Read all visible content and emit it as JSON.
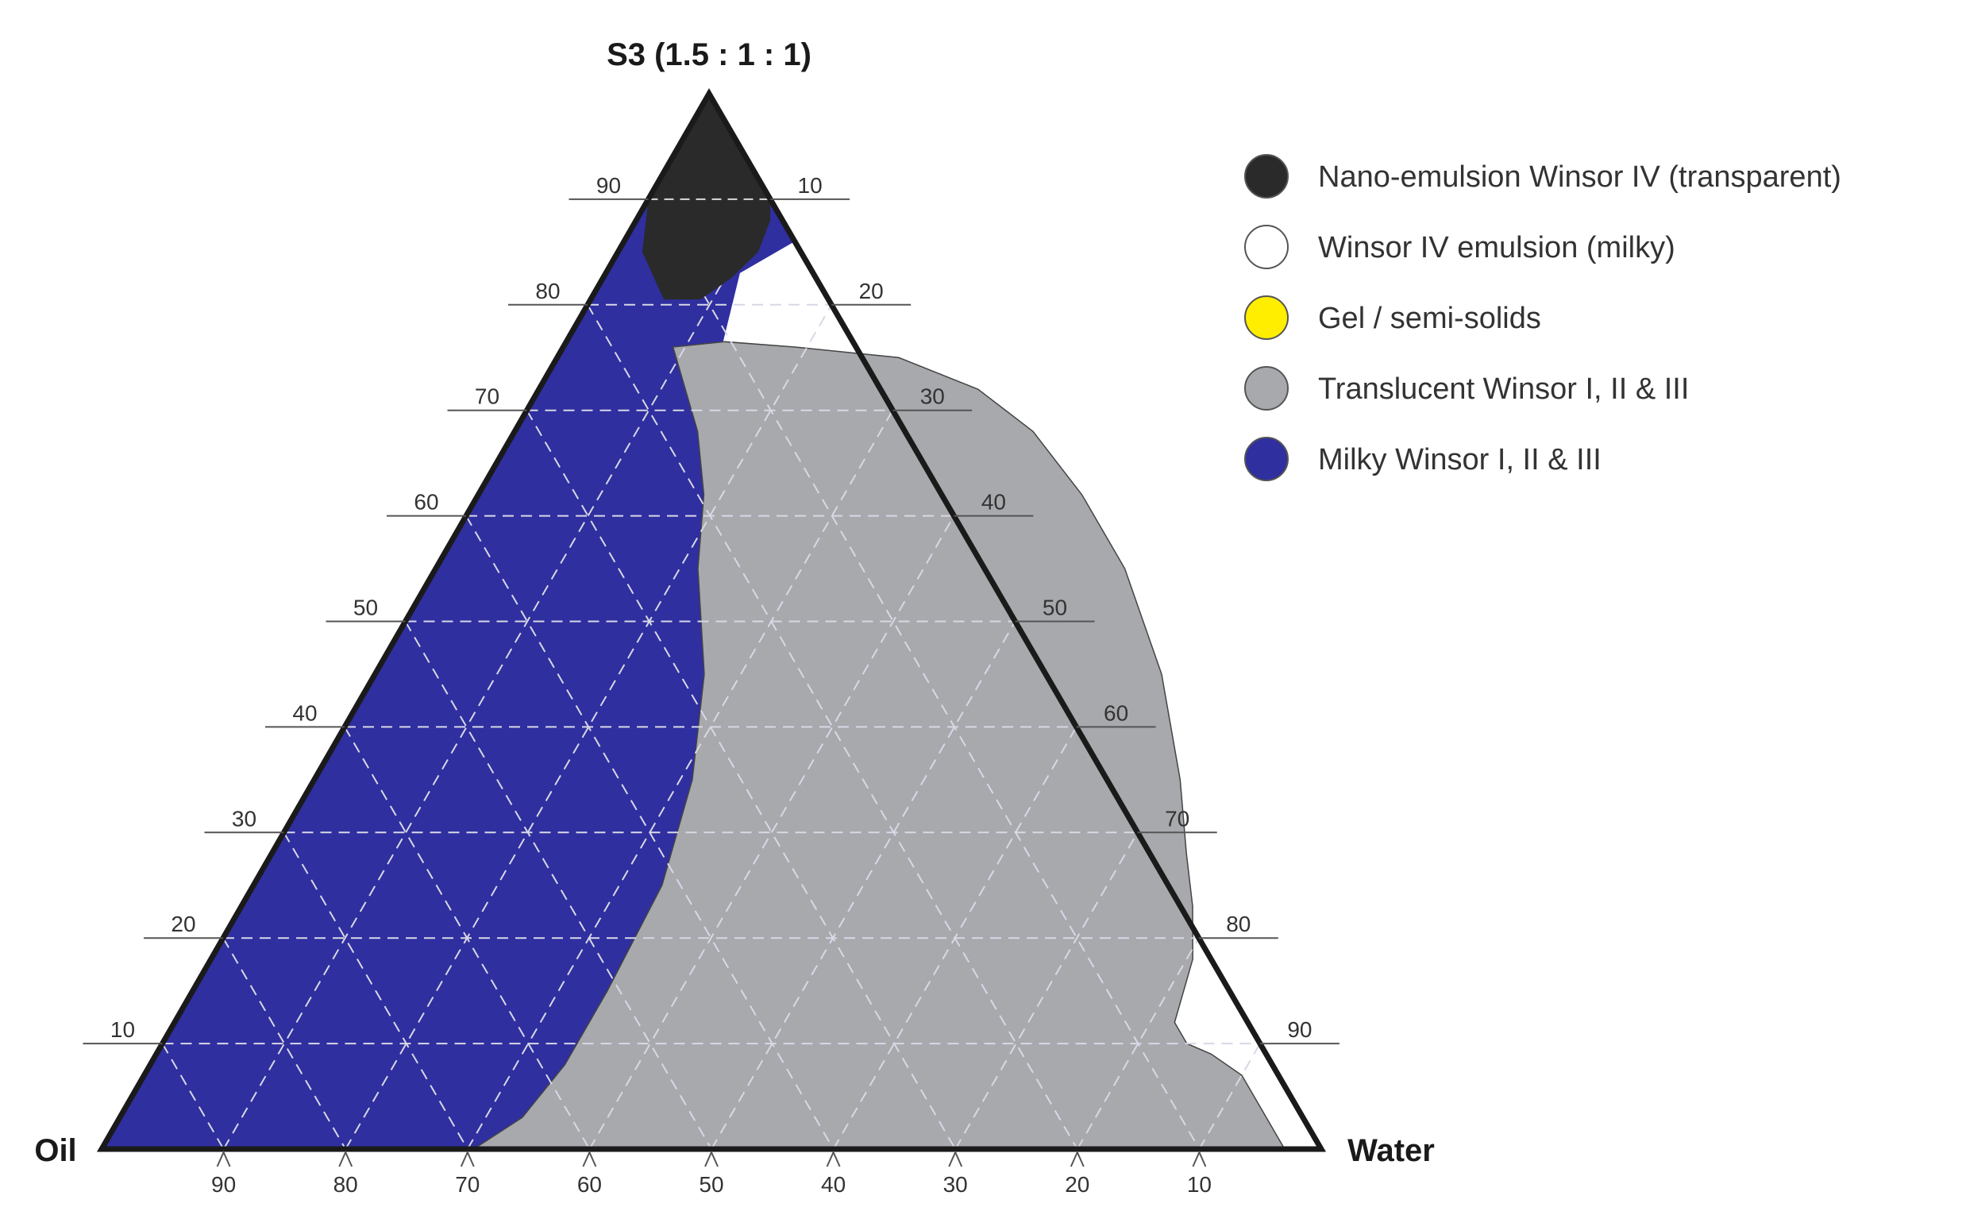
{
  "chart_data": {
    "type": "ternary",
    "title": "S3 (1.5 : 1 : 1)",
    "vertices": {
      "top": "S3 (1.5 : 1 : 1)",
      "left": "Oil",
      "right": "Water"
    },
    "ticks": {
      "left_axis": [
        "10",
        "20",
        "30",
        "40",
        "50",
        "60",
        "70",
        "80",
        "90"
      ],
      "right_axis": [
        "10",
        "20",
        "30",
        "40",
        "50",
        "60",
        "70",
        "80",
        "90"
      ],
      "bottom_axis": [
        "90",
        "80",
        "70",
        "60",
        "50",
        "40",
        "30",
        "20",
        "10"
      ]
    },
    "grid": true,
    "legend_position": "top-right",
    "legend": [
      {
        "key": "nano",
        "label": "Nano-emulsion Winsor IV (transparent)",
        "color": "#2a2a2a"
      },
      {
        "key": "milky4",
        "label": "Winsor IV emulsion (milky)",
        "color": "#ffffff"
      },
      {
        "key": "gel",
        "label": "Gel / semi-solids",
        "color": "#ffee00"
      },
      {
        "key": "translucent",
        "label": "Translucent Winsor I, II & III",
        "color": "#a8a9ad"
      },
      {
        "key": "milky",
        "label": "Milky Winsor I, II & III",
        "color": "#2f2fa0"
      }
    ],
    "regions": {
      "nano": [
        {
          "s": 100,
          "w": 0
        },
        {
          "s": 90,
          "w": 10
        },
        {
          "s": 88,
          "w": 11
        },
        {
          "s": 85,
          "w": 11.5
        },
        {
          "s": 82.5,
          "w": 10.5
        },
        {
          "s": 80.5,
          "w": 9
        },
        {
          "s": 80.5,
          "w": 6
        },
        {
          "s": 85,
          "w": 2
        },
        {
          "s": 90,
          "w": 0
        }
      ],
      "translucent": [
        {
          "s": 76,
          "w": 9
        },
        {
          "s": 72,
          "w": 12
        },
        {
          "s": 68,
          "w": 15
        },
        {
          "s": 62,
          "w": 18.5
        },
        {
          "s": 55,
          "w": 21.5
        },
        {
          "s": 45,
          "w": 27
        },
        {
          "s": 35,
          "w": 31
        },
        {
          "s": 25,
          "w": 33.5
        },
        {
          "s": 15,
          "w": 34
        },
        {
          "s": 8,
          "w": 34
        },
        {
          "s": 3,
          "w": 33
        },
        {
          "s": 0,
          "w": 30.5
        },
        {
          "s": 0,
          "w": 97
        },
        {
          "s": 4,
          "w": 93
        },
        {
          "s": 7,
          "w": 90
        },
        {
          "s": 9,
          "w": 86.5
        },
        {
          "s": 10,
          "w": 84
        },
        {
          "s": 12,
          "w": 82
        },
        {
          "s": 18,
          "w": 80.5
        },
        {
          "s": 23,
          "w": 78
        },
        {
          "s": 28,
          "w": 75
        },
        {
          "s": 35,
          "w": 71
        },
        {
          "s": 45,
          "w": 64.5
        },
        {
          "s": 55,
          "w": 56.5
        },
        {
          "s": 62,
          "w": 49.5
        },
        {
          "s": 68,
          "w": 42.5
        },
        {
          "s": 72,
          "w": 36
        },
        {
          "s": 75,
          "w": 28
        },
        {
          "s": 76,
          "w": 19
        },
        {
          "s": 76.5,
          "w": 13
        }
      ]
    }
  }
}
